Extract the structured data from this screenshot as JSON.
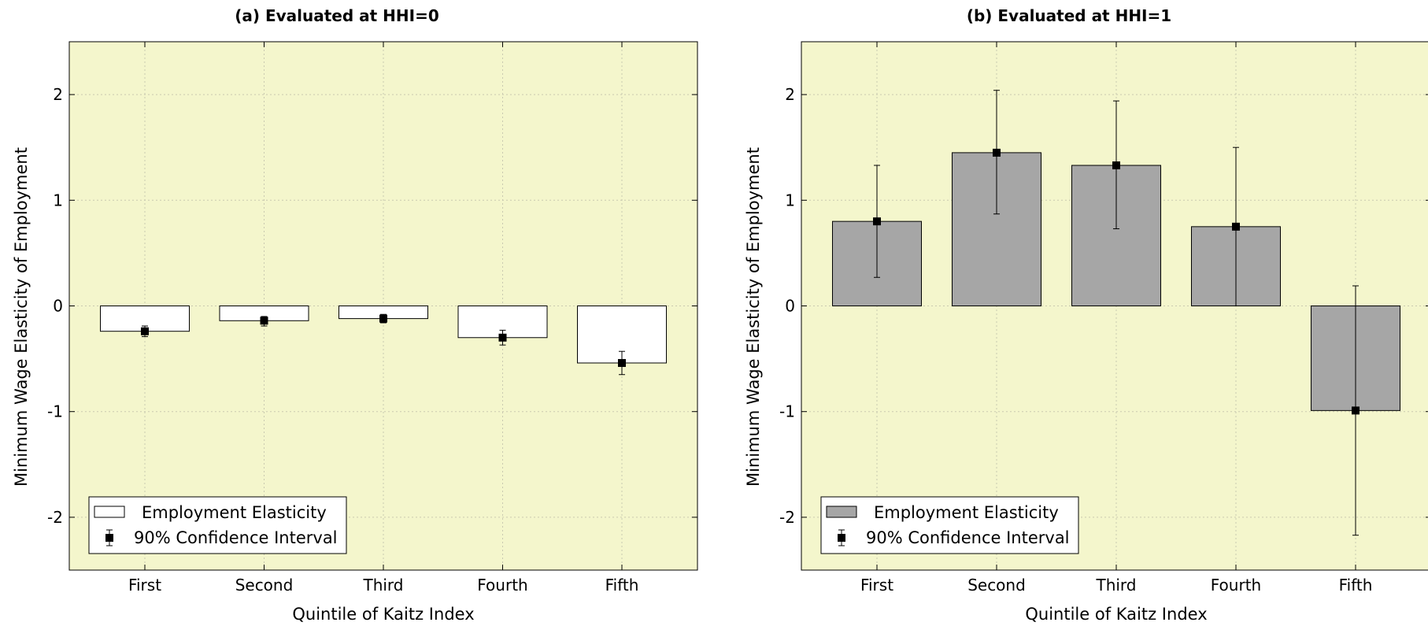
{
  "chart_data": [
    {
      "type": "bar",
      "title": "(a) Evaluated at HHI=0",
      "xlabel": "Quintile of Kaitz Index",
      "ylabel": "Minimum Wage Elasticity of Employment",
      "categories": [
        "First",
        "Second",
        "Third",
        "Fourth",
        "Fifth"
      ],
      "ylim": [
        -2.5,
        2.5
      ],
      "yticks": [
        -2,
        -1,
        0,
        1,
        2
      ],
      "grid": true,
      "legend_position": "bottom-left",
      "bar_color": "#ffffff",
      "background_color": "#f4f6cc",
      "series": [
        {
          "name": "Employment Elasticity",
          "values": [
            -0.24,
            -0.14,
            -0.12,
            -0.3,
            -0.54
          ]
        },
        {
          "name": "90% Confidence Interval",
          "lower": [
            -0.29,
            -0.19,
            -0.16,
            -0.37,
            -0.65
          ],
          "upper": [
            -0.19,
            -0.1,
            -0.08,
            -0.23,
            -0.43
          ]
        }
      ]
    },
    {
      "type": "bar",
      "title": "(b) Evaluated at HHI=1",
      "xlabel": "Quintile of Kaitz Index",
      "ylabel": "Minimum Wage Elasticity of Employment",
      "categories": [
        "First",
        "Second",
        "Third",
        "Fourth",
        "Fifth"
      ],
      "ylim": [
        -2.5,
        2.5
      ],
      "yticks": [
        -2,
        -1,
        0,
        1,
        2
      ],
      "grid": true,
      "legend_position": "bottom-left",
      "bar_color": "#a6a6a6",
      "background_color": "#f4f6cc",
      "series": [
        {
          "name": "Employment Elasticity",
          "values": [
            0.8,
            1.45,
            1.33,
            0.75,
            -0.99
          ]
        },
        {
          "name": "90% Confidence Interval",
          "lower": [
            0.27,
            0.87,
            0.73,
            0.0,
            -2.17
          ],
          "upper": [
            1.33,
            2.04,
            1.94,
            1.5,
            0.19
          ]
        }
      ]
    }
  ]
}
